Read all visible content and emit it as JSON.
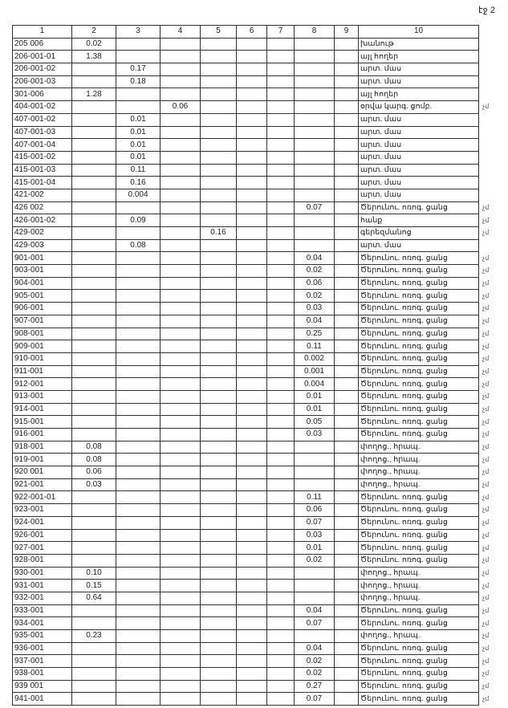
{
  "page_label": "էջ 2",
  "headers": [
    "1",
    "2",
    "3",
    "4",
    "5",
    "6",
    "7",
    "8",
    "9",
    "10"
  ],
  "rows": [
    [
      "205 006",
      "0.02",
      "",
      "",
      "",
      "",
      "",
      "",
      "",
      "խանութ",
      ""
    ],
    [
      "206-001-01",
      "1.38",
      "",
      "",
      "",
      "",
      "",
      "",
      "",
      "այլ հողեր",
      ""
    ],
    [
      "206-001-02",
      "",
      "0.17",
      "",
      "",
      "",
      "",
      "",
      "",
      "արտ. մաս",
      ""
    ],
    [
      "206-001-03",
      "",
      "0.18",
      "",
      "",
      "",
      "",
      "",
      "",
      "արտ. մաս",
      ""
    ],
    [
      "301-006",
      "1.28",
      "",
      "",
      "",
      "",
      "",
      "",
      "",
      "այլ հողեր",
      ""
    ],
    [
      "404-001-02",
      "",
      "",
      "0.06",
      "",
      "",
      "",
      "",
      "",
      "օրվա կարգ. ցոմբ.",
      "չմ"
    ],
    [
      "407-001-02",
      "",
      "0.01",
      "",
      "",
      "",
      "",
      "",
      "",
      "արտ. մաս",
      ""
    ],
    [
      "407-001-03",
      "",
      "0.01",
      "",
      "",
      "",
      "",
      "",
      "",
      "արտ. մաս",
      ""
    ],
    [
      "407-001-04",
      "",
      "0.01",
      "",
      "",
      "",
      "",
      "",
      "",
      "արտ. մաս",
      ""
    ],
    [
      "415-001-02",
      "",
      "0.01",
      "",
      "",
      "",
      "",
      "",
      "",
      "արտ. մաս",
      ""
    ],
    [
      "415-001-03",
      "",
      "0.11",
      "",
      "",
      "",
      "",
      "",
      "",
      "արտ. մաս",
      ""
    ],
    [
      "415-001-04",
      "",
      "0.16",
      "",
      "",
      "",
      "",
      "",
      "",
      "արտ. մաս",
      ""
    ],
    [
      "421-002",
      "",
      "0.004",
      "",
      "",
      "",
      "",
      "",
      "",
      "արտ. մաս",
      ""
    ],
    [
      "426 002",
      "",
      "",
      "",
      "",
      "",
      "",
      "0.07",
      "",
      "Ծերունու. ոռոգ. ցանց",
      "չմ"
    ],
    [
      "426-001-02",
      "",
      "0.09",
      "",
      "",
      "",
      "",
      "",
      "",
      "հանք",
      "չմ"
    ],
    [
      "429-002",
      "",
      "",
      "",
      "0.16",
      "",
      "",
      "",
      "",
      "գերեզմանոց",
      "չմ"
    ],
    [
      "429-003",
      "",
      "0.08",
      "",
      "",
      "",
      "",
      "",
      "",
      "արտ. մաս",
      ""
    ],
    [
      "901-001",
      "",
      "",
      "",
      "",
      "",
      "",
      "0.04",
      "",
      "Ծերունու. ոռոգ. ցանց",
      "չմ"
    ],
    [
      "903-001",
      "",
      "",
      "",
      "",
      "",
      "",
      "0.02",
      "",
      "Ծերունու. ոռոգ. ցանց",
      "չմ"
    ],
    [
      "904-001",
      "",
      "",
      "",
      "",
      "",
      "",
      "0.06",
      "",
      "Ծերունու. ոռոգ. ցանց",
      "չմ"
    ],
    [
      "905-001",
      "",
      "",
      "",
      "",
      "",
      "",
      "0.02",
      "",
      "Ծերունու. ոռոգ. ցանց",
      "չմ"
    ],
    [
      "906-001",
      "",
      "",
      "",
      "",
      "",
      "",
      "0.03",
      "",
      "Ծերունու. ոռոգ. ցանց",
      "չմ"
    ],
    [
      "907-001",
      "",
      "",
      "",
      "",
      "",
      "",
      "0.04",
      "",
      "Ծերունու. ոռոգ. ցանց",
      "չմ"
    ],
    [
      "908-001",
      "",
      "",
      "",
      "",
      "",
      "",
      "0.25",
      "",
      "Ծերունու. ոռոգ. ցանց",
      "չմ"
    ],
    [
      "909-001",
      "",
      "",
      "",
      "",
      "",
      "",
      "0.11",
      "",
      "Ծերունու. ոռոգ. ցանց",
      "չմ"
    ],
    [
      "910-001",
      "",
      "",
      "",
      "",
      "",
      "",
      "0.002",
      "",
      "Ծերունու. ոռոգ. ցանց",
      "չմ"
    ],
    [
      "911-001",
      "",
      "",
      "",
      "",
      "",
      "",
      "0.001",
      "",
      "Ծերունու. ոռոգ. ցանց",
      "չմ"
    ],
    [
      "912-001",
      "",
      "",
      "",
      "",
      "",
      "",
      "0.004",
      "",
      "Ծերունու. ոռոգ. ցանց",
      "չմ"
    ],
    [
      "913-001",
      "",
      "",
      "",
      "",
      "",
      "",
      "0.01",
      "",
      "Ծերունու. ոռոգ. ցանց",
      "չմ"
    ],
    [
      "914-001",
      "",
      "",
      "",
      "",
      "",
      "",
      "0.01",
      "",
      "Ծերունու. ոռոգ. ցանց",
      "չմ"
    ],
    [
      "915-001",
      "",
      "",
      "",
      "",
      "",
      "",
      "0.05",
      "",
      "Ծերունու. ոռոգ. ցանց",
      "չմ"
    ],
    [
      "916-001",
      "",
      "",
      "",
      "",
      "",
      "",
      "0.03",
      "",
      "Ծերունու. ոռոգ. ցանց",
      "չմ"
    ],
    [
      "918-001",
      "0.08",
      "",
      "",
      "",
      "",
      "",
      "",
      "",
      "փողոց., հրապ.",
      "չմ"
    ],
    [
      "919-001",
      "0.08",
      "",
      "",
      "",
      "",
      "",
      "",
      "",
      "փողոց., հրապ.",
      "չմ"
    ],
    [
      "920 001",
      "0.06",
      "",
      "",
      "",
      "",
      "",
      "",
      "",
      "փողոց., հրապ.",
      "չմ"
    ],
    [
      "921-001",
      "0.03",
      "",
      "",
      "",
      "",
      "",
      "",
      "",
      "փողոց., հրապ.",
      "չմ"
    ],
    [
      "922-001-01",
      "",
      "",
      "",
      "",
      "",
      "",
      "0.11",
      "",
      "Ծերունու. ոռոգ. ցանց",
      "չմ"
    ],
    [
      "923-001",
      "",
      "",
      "",
      "",
      "",
      "",
      "0.06",
      "",
      "Ծերունու. ոռոգ. ցանց",
      "չմ"
    ],
    [
      "924-001",
      "",
      "",
      "",
      "",
      "",
      "",
      "0.07",
      "",
      "Ծերունու. ոռոգ. ցանց",
      "չմ"
    ],
    [
      "926-001",
      "",
      "",
      "",
      "",
      "",
      "",
      "0.03",
      "",
      "Ծերունու. ոռոգ. ցանց",
      "չմ"
    ],
    [
      "927-001",
      "",
      "",
      "",
      "",
      "",
      "",
      "0.01",
      "",
      "Ծերունու. ոռոգ. ցանց",
      "չմ"
    ],
    [
      "928-001",
      "",
      "",
      "",
      "",
      "",
      "",
      "0.02",
      "",
      "Ծերունու. ոռոգ. ցանց",
      "չմ"
    ],
    [
      "930-001",
      "0.10",
      "",
      "",
      "",
      "",
      "",
      "",
      "",
      "փողոց., հրապ.",
      "չմ"
    ],
    [
      "931-001",
      "0.15",
      "",
      "",
      "",
      "",
      "",
      "",
      "",
      "փողոց., հրապ.",
      "չմ"
    ],
    [
      "932-001",
      "0.64",
      "",
      "",
      "",
      "",
      "",
      "",
      "",
      "փողոց., հրապ.",
      "չմ"
    ],
    [
      "933-001",
      "",
      "",
      "",
      "",
      "",
      "",
      "0.04",
      "",
      "Ծերունու. ոռոգ. ցանց",
      "չմ"
    ],
    [
      "934-001",
      "",
      "",
      "",
      "",
      "",
      "",
      "0.07",
      "",
      "Ծերունու. ոռոգ. ցանց",
      "չմ"
    ],
    [
      "935-001",
      "0.23",
      "",
      "",
      "",
      "",
      "",
      "",
      "",
      "փողոց., հրապ.",
      "չմ"
    ],
    [
      "936-001",
      "",
      "",
      "",
      "",
      "",
      "",
      "0.04",
      "",
      "Ծերունու. ոռոգ. ցանց",
      "չմ"
    ],
    [
      "937-001",
      "",
      "",
      "",
      "",
      "",
      "",
      "0.02",
      "",
      "Ծերունու. ոռոգ. ցանց",
      "չմ"
    ],
    [
      "938-001",
      "",
      "",
      "",
      "",
      "",
      "",
      "0.02",
      "",
      "Ծերունու. ոռոգ. ցանց",
      "չմ"
    ],
    [
      "939 001",
      "",
      "",
      "",
      "",
      "",
      "",
      "0.27",
      "",
      "Ծերունու. ոռոգ. ցանց",
      "չմ"
    ],
    [
      "941-001",
      "",
      "",
      "",
      "",
      "",
      "",
      "0.07",
      "",
      "Ծերունու. ոռոգ. ցանց",
      "չմ"
    ]
  ]
}
